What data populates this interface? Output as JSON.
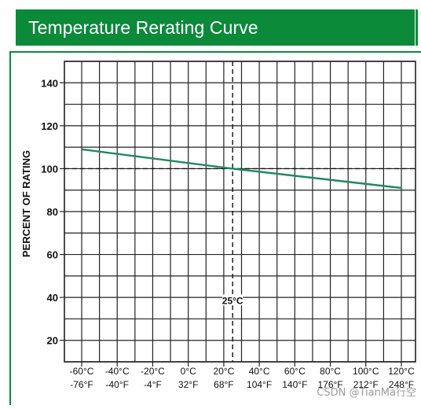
{
  "chart_data": {
    "type": "line",
    "title": "Temperature Rerating Curve",
    "ylabel": "PERCENT OF RATING",
    "xlabel": "",
    "x_ticks": [
      {
        "c": "-60°C",
        "f": "-76°F",
        "value": -60
      },
      {
        "c": "-40°C",
        "f": "-40°F",
        "value": -40
      },
      {
        "c": "-20°C",
        "f": "-4°F",
        "value": -20
      },
      {
        "c": "0°C",
        "f": "32°F",
        "value": 0
      },
      {
        "c": "20°C",
        "f": "68°F",
        "value": 20
      },
      {
        "c": "40°C",
        "f": "104°F",
        "value": 40
      },
      {
        "c": "60°C",
        "f": "140°F",
        "value": 60
      },
      {
        "c": "80°C",
        "f": "176°F",
        "value": 80
      },
      {
        "c": "100°C",
        "f": "212°F",
        "value": 100
      },
      {
        "c": "120°C",
        "f": "248°F",
        "value": 120
      }
    ],
    "y_ticks": [
      20,
      40,
      60,
      80,
      100,
      120,
      140
    ],
    "xlim": [
      -60,
      120
    ],
    "ylim": [
      10,
      150
    ],
    "grid": true,
    "series": [
      {
        "color": "#1f8a5a",
        "x": [
          -60,
          25,
          120
        ],
        "y": [
          109,
          100,
          91
        ]
      }
    ],
    "reference_lines": [
      {
        "axis": "y",
        "value": 100,
        "style": "dashed"
      },
      {
        "axis": "x",
        "value": 25,
        "style": "dashed",
        "label": "25°C"
      }
    ]
  },
  "watermark": "CSDN @TianMa行空",
  "colors": {
    "header": "#0b8a3a",
    "curve": "#1f8a5a",
    "grid": "#222222"
  }
}
